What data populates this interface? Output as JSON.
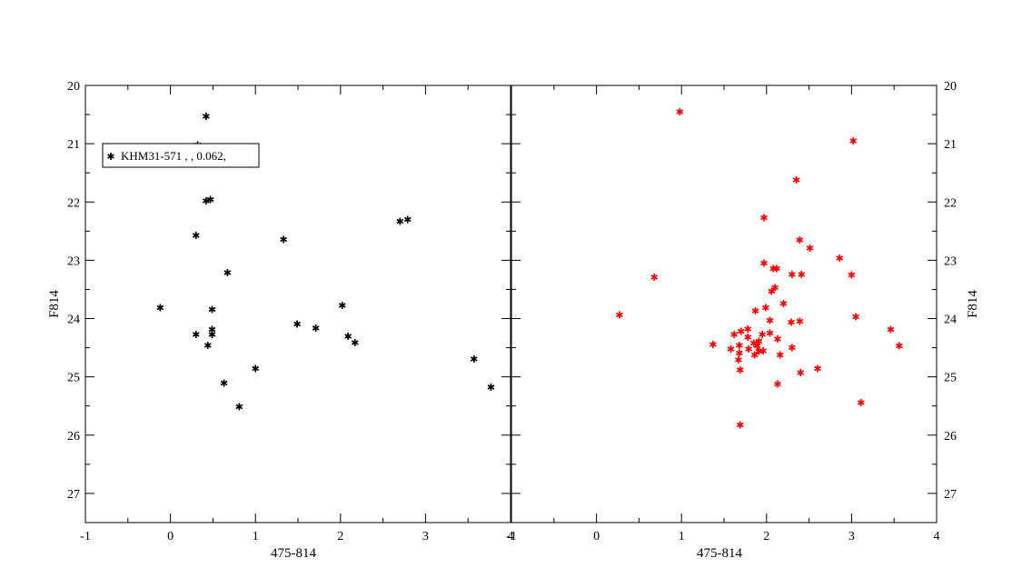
{
  "chart_data": [
    {
      "type": "scatter",
      "panel": "left",
      "xlabel": "475-814",
      "ylabel": "F814",
      "xlim": [
        -1,
        4
      ],
      "ylim": [
        27.5,
        20
      ],
      "x_ticks": [
        "-1",
        "0",
        "1",
        "2",
        "3",
        "4"
      ],
      "y_ticks": [
        "20",
        "21",
        "22",
        "23",
        "24",
        "25",
        "26",
        "27"
      ],
      "y_axis_side": "left",
      "legend": {
        "placement": "top-left",
        "text": "KHM31-571   ,    , 0.062,"
      },
      "series": [
        {
          "color": "#000000",
          "points": [
            [
              0.42,
              20.53
            ],
            [
              0.32,
              21.02
            ],
            [
              0.42,
              21.98
            ],
            [
              0.47,
              21.96
            ],
            [
              0.3,
              22.57
            ],
            [
              0.67,
              23.21
            ],
            [
              1.33,
              22.64
            ],
            [
              2.7,
              22.33
            ],
            [
              2.79,
              22.3
            ],
            [
              -0.12,
              23.81
            ],
            [
              0.49,
              23.84
            ],
            [
              0.3,
              24.27
            ],
            [
              0.49,
              24.19
            ],
            [
              0.49,
              24.27
            ],
            [
              0.44,
              24.46
            ],
            [
              1.49,
              24.09
            ],
            [
              1.71,
              24.16
            ],
            [
              2.02,
              23.77
            ],
            [
              2.09,
              24.3
            ],
            [
              2.17,
              24.41
            ],
            [
              0.63,
              25.11
            ],
            [
              1.0,
              24.86
            ],
            [
              0.81,
              25.51
            ],
            [
              3.57,
              24.69
            ],
            [
              3.77,
              25.18
            ]
          ]
        }
      ]
    },
    {
      "type": "scatter",
      "panel": "right",
      "xlabel": "475-814",
      "ylabel": "F814",
      "xlim": [
        -1,
        4
      ],
      "ylim": [
        27.5,
        20
      ],
      "x_ticks": [
        "-1",
        "0",
        "1",
        "2",
        "3",
        "4"
      ],
      "y_ticks": [
        "20",
        "21",
        "22",
        "23",
        "24",
        "25",
        "26",
        "27"
      ],
      "y_axis_side": "right",
      "series": [
        {
          "color": "#ff0000",
          "points": [
            [
              0.98,
              20.45
            ],
            [
              3.02,
              20.95
            ],
            [
              2.35,
              21.62
            ],
            [
              1.97,
              22.27
            ],
            [
              2.39,
              22.65
            ],
            [
              2.51,
              22.79
            ],
            [
              2.86,
              22.96
            ],
            [
              1.97,
              23.05
            ],
            [
              2.08,
              23.14
            ],
            [
              2.12,
              23.14
            ],
            [
              2.3,
              23.24
            ],
            [
              2.41,
              23.24
            ],
            [
              3.0,
              23.25
            ],
            [
              0.68,
              23.29
            ],
            [
              2.1,
              23.47
            ],
            [
              2.06,
              23.53
            ],
            [
              2.2,
              23.74
            ],
            [
              1.99,
              23.81
            ],
            [
              1.87,
              23.87
            ],
            [
              0.27,
              23.94
            ],
            [
              3.05,
              23.97
            ],
            [
              2.04,
              24.03
            ],
            [
              2.29,
              24.06
            ],
            [
              2.39,
              24.05
            ],
            [
              1.78,
              24.18
            ],
            [
              3.46,
              24.19
            ],
            [
              1.7,
              24.22
            ],
            [
              2.04,
              24.25
            ],
            [
              1.95,
              24.27
            ],
            [
              1.62,
              24.27
            ],
            [
              1.78,
              24.32
            ],
            [
              2.13,
              24.35
            ],
            [
              1.85,
              24.42
            ],
            [
              1.91,
              24.39
            ],
            [
              1.37,
              24.44
            ],
            [
              1.68,
              24.46
            ],
            [
              1.89,
              24.47
            ],
            [
              3.56,
              24.47
            ],
            [
              2.3,
              24.5
            ],
            [
              1.58,
              24.52
            ],
            [
              1.79,
              24.52
            ],
            [
              1.96,
              24.55
            ],
            [
              1.91,
              24.56
            ],
            [
              1.68,
              24.59
            ],
            [
              1.86,
              24.62
            ],
            [
              2.16,
              24.62
            ],
            [
              1.67,
              24.71
            ],
            [
              2.6,
              24.86
            ],
            [
              1.69,
              24.88
            ],
            [
              2.4,
              24.93
            ],
            [
              2.13,
              25.12
            ],
            [
              3.11,
              25.44
            ],
            [
              1.69,
              25.82
            ]
          ]
        }
      ]
    }
  ]
}
